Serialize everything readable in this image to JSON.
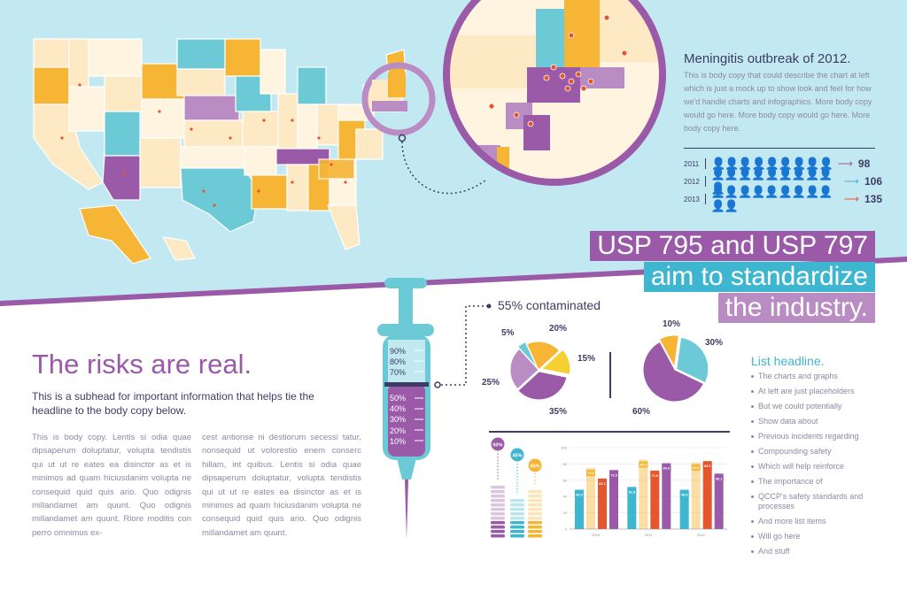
{
  "colors": {
    "sky": "#c2e8f2",
    "purple": "#9a5aa8",
    "teal": "#6ccad6",
    "orange": "#f6b535",
    "cream": "#fde9c4",
    "navy": "#3c3c64",
    "red": "#e4572e"
  },
  "map_panel": {
    "title": "Meningitis outbreak of 2012.",
    "body": "This is body copy that could describe the chart at left which is just a mock up to show look and feel for how we'd handle charts and infographics. More body copy would go here. More body copy would go here. More body copy here."
  },
  "pictograph": {
    "rows": [
      {
        "year": "2011",
        "value": "98",
        "color": "#9a5aa8"
      },
      {
        "year": "2012",
        "value": "106",
        "color": "#3fb6cf"
      },
      {
        "year": "2013",
        "value": "135",
        "color": "#e4572e"
      }
    ]
  },
  "headline": {
    "line1": "USP 795 and USP 797",
    "line2": "aim to standardize",
    "line3": "the industry."
  },
  "risks": {
    "title": "The risks are real.",
    "subhead": "This is a subhead for important information that helps tie the headline to the body copy below.",
    "col1": "This is body copy. Lentis si odia quae dipsaperum doluptatur, volupta tendistis qui ut ut re eates ea disinctor as et is minimos ad quam hiciusdanim volupta ne consequid quid quis ario. Quo odignis millandamet am quunt. Quo odignis millandamet am quunt. Riore moditis con perro omnimus ex-",
    "col2": "cest antionse ni destiorum secessi tatur, nonsequid ut volorestio enem conserc hillam, int quibus. Lentis si odia quae dipsaperum doluptatur, volupta tendistis qui ut ut re eates ea disinctor as et is minimos ad quam hiciusdanim volupta ne consequid quid quis ario. Quo odignis millandamet am quunt."
  },
  "syringe": {
    "ticks": [
      "90%",
      "80%",
      "70%",
      "50%",
      "40%",
      "30%",
      "20%",
      "10%"
    ]
  },
  "contaminated_label": "55% contaminated",
  "list": {
    "headline": "List headline.",
    "items": [
      "The charts and graphs",
      "At left are just placeholders",
      "But we could potentially",
      "Show data about",
      "Previous incidents regarding",
      "Compounding safety",
      "Which will help reinforce",
      "The importance of",
      "QCCP's safety standards and processes",
      "And more list items",
      "Will go here",
      "And stuff"
    ]
  },
  "chart_data": [
    {
      "type": "pie",
      "labels": [
        "35%",
        "25%",
        "5%",
        "20%",
        "15%"
      ],
      "values": [
        35,
        25,
        5,
        20,
        15
      ],
      "colors": [
        "#9a5aa8",
        "#b98cc3",
        "#6ccad6",
        "#f6b535",
        "#f6d030"
      ]
    },
    {
      "type": "pie",
      "labels": [
        "60%",
        "10%",
        "30%"
      ],
      "values": [
        60,
        10,
        30
      ],
      "colors": [
        "#9a5aa8",
        "#f6b535",
        "#6ccad6"
      ]
    },
    {
      "type": "bar",
      "categories": [
        "60%",
        "45%",
        "55%"
      ],
      "values": [
        60,
        45,
        55
      ],
      "colors": [
        "#9a5aa8",
        "#3fb6cf",
        "#f6b535"
      ]
    },
    {
      "type": "bar",
      "categories": [
        "2010",
        "2011",
        "2012"
      ],
      "ylim": [
        0,
        100
      ],
      "yticks": [
        "100",
        "80",
        "60",
        "40",
        "20",
        "0"
      ],
      "series": [
        {
          "values": [
            48.3,
            51.8,
            48.3
          ]
        },
        {
          "values": [
            74.9,
            85.2,
            81.5
          ]
        },
        {
          "values": [
            62.1,
            71.9,
            83.5
          ]
        },
        {
          "values": [
            72.5,
            80.9,
            68.1
          ]
        }
      ],
      "data_labels": [
        [
          "48.3",
          "74.9",
          "62.1",
          "72.5"
        ],
        [
          "51.8",
          "85.2",
          "71.9",
          "80.9"
        ],
        [
          "48.3",
          "81.5",
          "83.5",
          "68.1"
        ]
      ],
      "colors": [
        "#3fb6cf",
        "#f6b535",
        "#e4572e",
        "#9a5aa8"
      ]
    }
  ]
}
